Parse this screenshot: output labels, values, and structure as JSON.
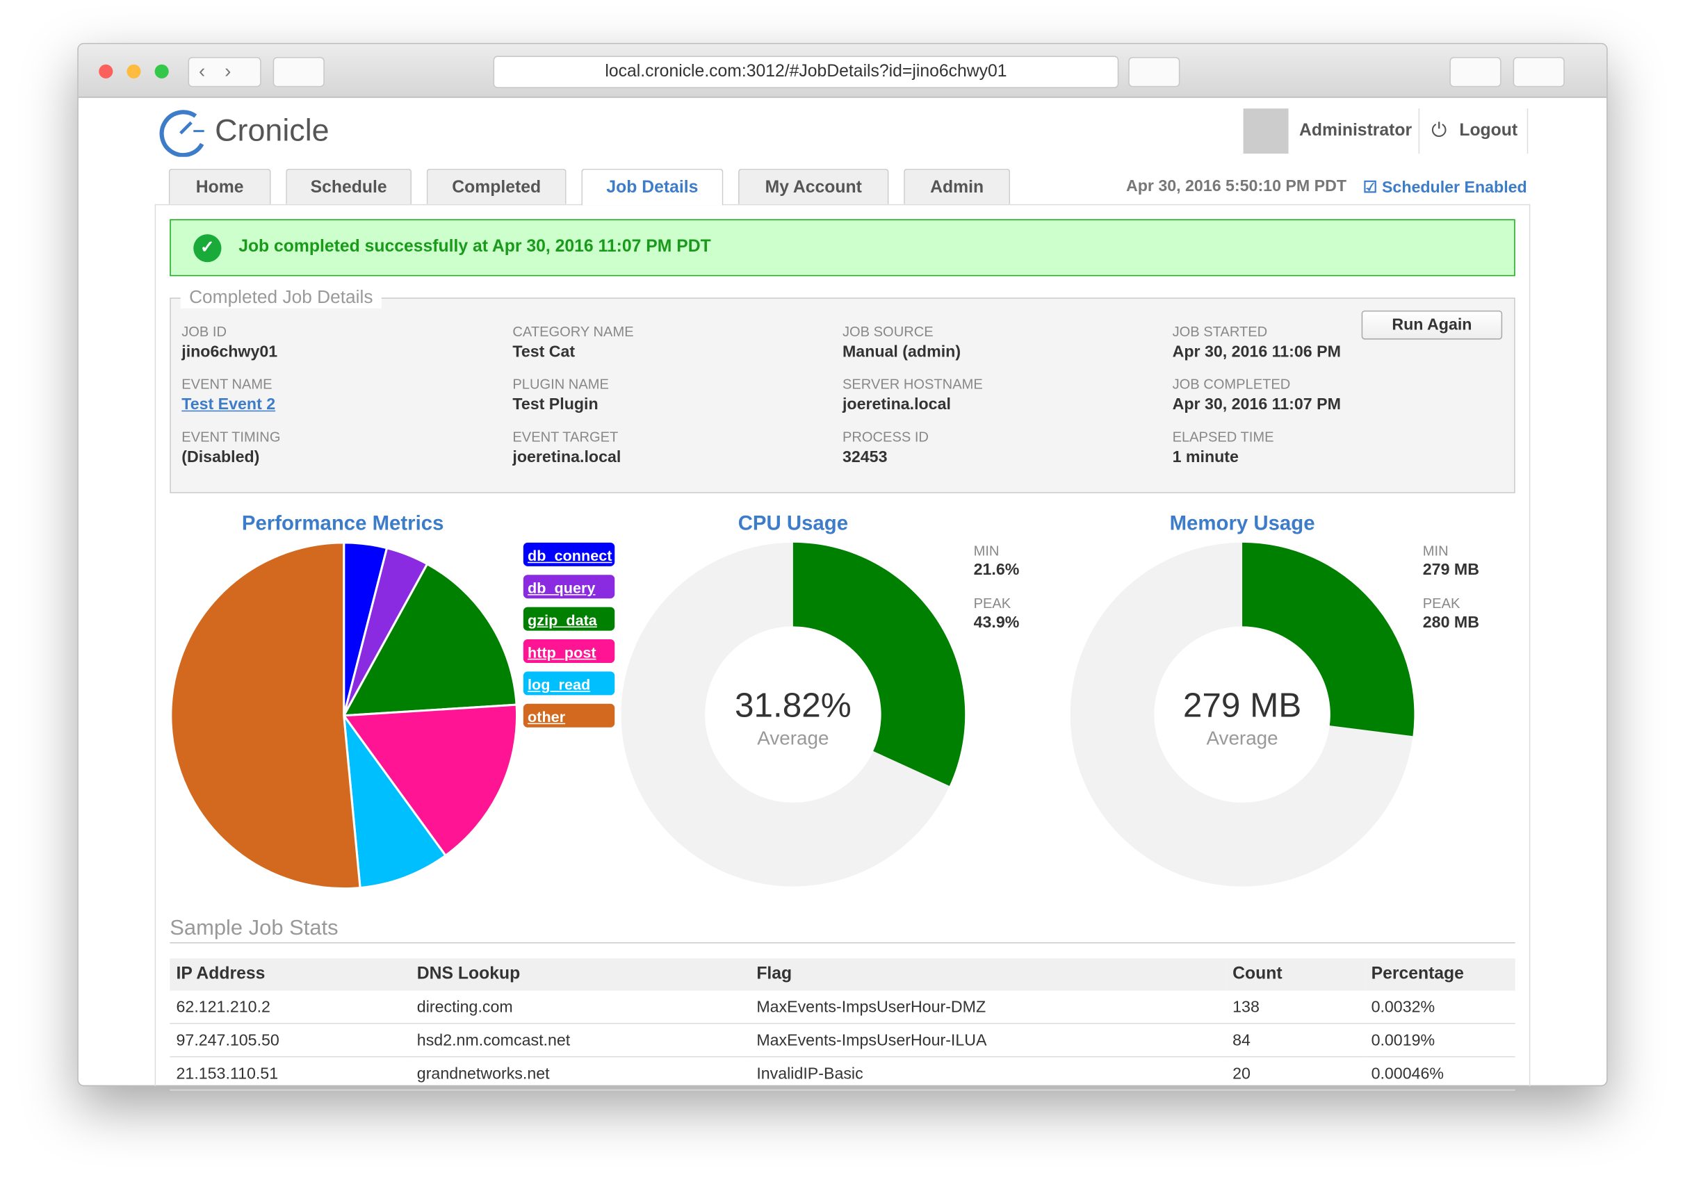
{
  "browser": {
    "url": "local.cronicle.com:3012/#JobDetails?id=jino6chwy01"
  },
  "header": {
    "logo": "Cronicle",
    "user": "Administrator",
    "logout": "Logout"
  },
  "tabs": [
    "Home",
    "Schedule",
    "Completed",
    "Job Details",
    "My Account",
    "Admin"
  ],
  "datetime": "Apr 30, 2016 5:50:10 PM PDT",
  "scheduler": "Scheduler Enabled",
  "banner": "Job completed successfully at Apr 30, 2016 11:07 PM PDT",
  "details": {
    "legend": "Completed Job Details",
    "button": "Run Again",
    "rows": [
      [
        {
          "label": "JOB ID",
          "value": "jino6chwy01"
        },
        {
          "label": "CATEGORY NAME",
          "value": "Test Cat"
        },
        {
          "label": "JOB SOURCE",
          "value": "Manual (admin)"
        },
        {
          "label": "JOB STARTED",
          "value": "Apr 30, 2016 11:06 PM"
        }
      ],
      [
        {
          "label": "EVENT NAME",
          "value": "Test Event 2"
        },
        {
          "label": "PLUGIN NAME",
          "value": "Test Plugin"
        },
        {
          "label": "SERVER HOSTNAME",
          "value": "joeretina.local"
        },
        {
          "label": "JOB COMPLETED",
          "value": "Apr 30, 2016 11:07 PM"
        }
      ],
      [
        {
          "label": "EVENT TIMING",
          "value": "(Disabled)"
        },
        {
          "label": "EVENT TARGET",
          "value": "joeretina.local"
        },
        {
          "label": "PROCESS ID",
          "value": "32453"
        },
        {
          "label": "ELAPSED TIME",
          "value": "1 minute"
        }
      ]
    ]
  },
  "chart_data": [
    {
      "type": "pie",
      "title": "Performance Metrics",
      "categories": [
        "db_connect",
        "db_query",
        "gzip_data",
        "http_post",
        "log_read",
        "other"
      ],
      "values": [
        4,
        4,
        16,
        16,
        8.5,
        51.5
      ],
      "colors": [
        "#0000ff",
        "#8a2be2",
        "#008000",
        "#ff1493",
        "#00bfff",
        "#d2691e"
      ]
    },
    {
      "type": "donut",
      "title": "CPU Usage",
      "percent": 31.82,
      "center_label": "31.82%",
      "caption": "Average",
      "color": "#008000",
      "stats": [
        {
          "label": "MIN",
          "value": "21.6%"
        },
        {
          "label": "PEAK",
          "value": "43.9%"
        }
      ]
    },
    {
      "type": "donut",
      "title": "Memory Usage",
      "percent": 27,
      "center_label": "279 MB",
      "caption": "Average",
      "color": "#008000",
      "stats": [
        {
          "label": "MIN",
          "value": "279 MB"
        },
        {
          "label": "PEAK",
          "value": "280 MB"
        }
      ]
    }
  ],
  "table": {
    "title": "Sample Job Stats",
    "headers": [
      "IP Address",
      "DNS Lookup",
      "Flag",
      "Count",
      "Percentage"
    ],
    "rows": [
      [
        "62.121.210.2",
        "directing.com",
        "MaxEvents-ImpsUserHour-DMZ",
        "138",
        "0.0032%"
      ],
      [
        "97.247.105.50",
        "hsd2.nm.comcast.net",
        "MaxEvents-ImpsUserHour-ILUA",
        "84",
        "0.0019%"
      ],
      [
        "21.153.110.51",
        "grandnetworks.net",
        "InvalidIP-Basic",
        "20",
        "0.00046%"
      ]
    ]
  }
}
